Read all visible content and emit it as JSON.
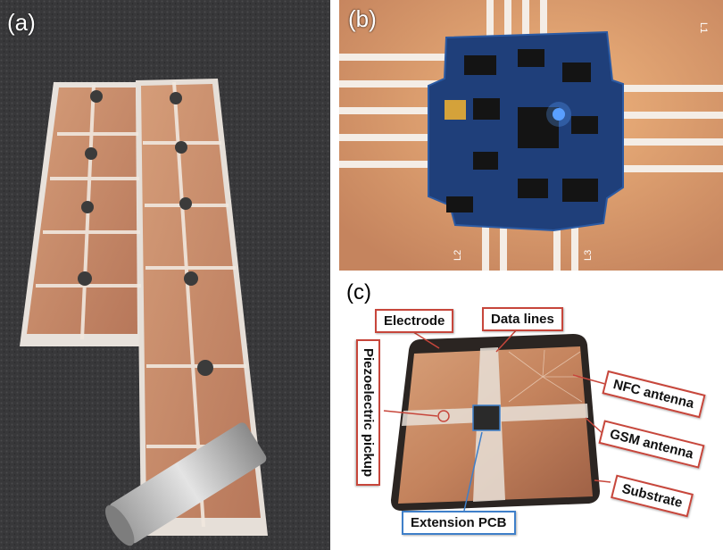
{
  "panels": {
    "a": {
      "label": "(a)"
    },
    "b": {
      "label": "(b)",
      "pcb_marks": {
        "top_right": "L1",
        "bottom_left": "L2",
        "bottom_right": "L3"
      }
    },
    "c": {
      "label": "(c)"
    }
  },
  "callouts": {
    "electrode": "Electrode",
    "data_lines": "Data lines",
    "nfc_antenna": "NFC antenna",
    "gsm_antenna": "GSM antenna",
    "substrate": "Substrate",
    "piezo": "Piezoelectric pickup",
    "extension_pcb": "Extension PCB"
  },
  "colors": {
    "copper": "#c98a63",
    "copper_dark": "#a9674a",
    "carpet": "#3a3a3c",
    "pcb_blue": "#1f3f7a",
    "callout_red": "#c7463b",
    "callout_blue": "#3e7fc9"
  }
}
